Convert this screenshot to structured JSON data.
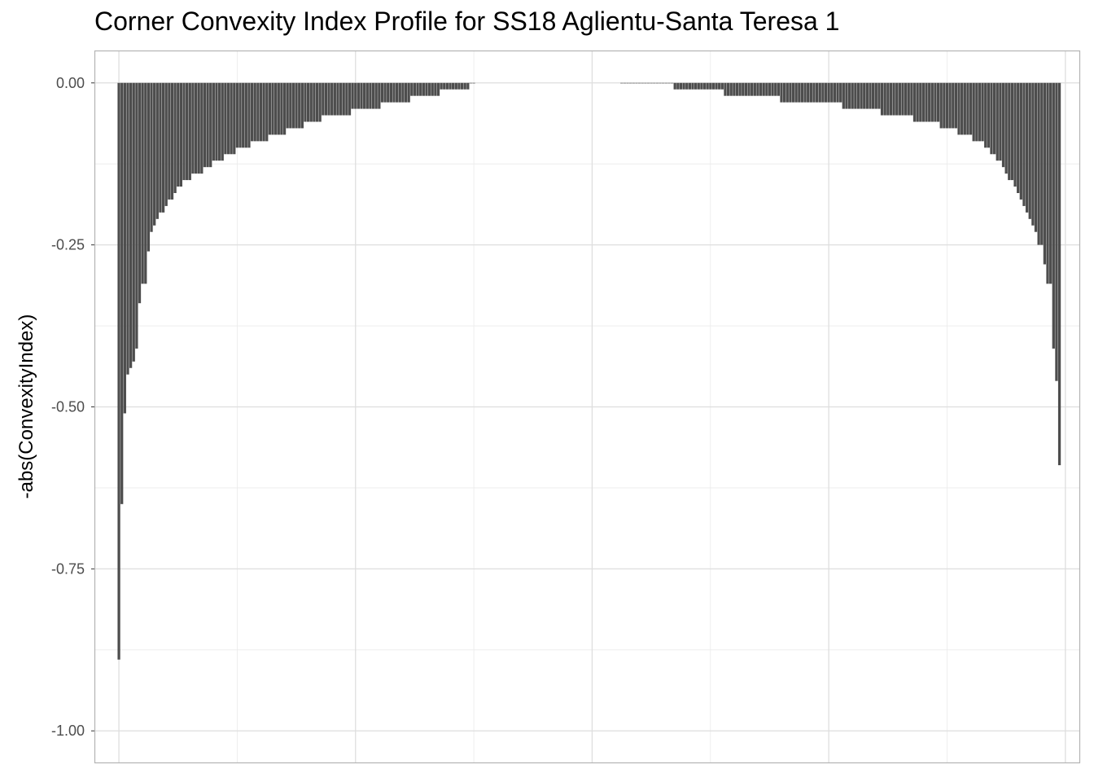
{
  "chart_data": {
    "type": "bar",
    "title": "Corner Convexity Index Profile for SS18 Aglientu-Santa Teresa 1",
    "xlabel": "",
    "ylabel": "-abs(ConvexityIndex)",
    "ylim": [
      -1.05,
      0.05
    ],
    "y_ticks": [
      "0.00",
      "-0.25",
      "-0.50",
      "-0.75",
      "-1.00"
    ],
    "y_tick_values": [
      0,
      -0.25,
      -0.5,
      -0.75,
      -1.0
    ],
    "grid": true,
    "legend": "none",
    "bar_color": "#4d4d4d",
    "x_range": [
      -8,
      325
    ],
    "x_major_breaks": [
      0,
      80,
      160,
      240,
      320
    ],
    "x_minor_breaks": [
      40,
      120,
      200,
      280
    ],
    "series": [
      {
        "values": [
          [
            0,
            -0.89
          ],
          [
            1,
            -0.65
          ],
          [
            2,
            -0.51
          ],
          [
            3,
            -0.45
          ],
          [
            4,
            -0.44
          ],
          [
            5,
            -0.43
          ],
          [
            6,
            -0.41
          ],
          [
            7,
            -0.34
          ],
          [
            8,
            -0.31
          ],
          [
            9,
            -0.31
          ],
          [
            10,
            -0.26
          ],
          [
            11,
            -0.23
          ],
          [
            12,
            -0.22
          ],
          [
            13,
            -0.21
          ],
          [
            14,
            -0.2
          ],
          [
            15,
            -0.2
          ],
          [
            16,
            -0.19
          ],
          [
            17,
            -0.18
          ],
          [
            18,
            -0.18
          ],
          [
            19,
            -0.17
          ],
          [
            20,
            -0.16
          ],
          [
            21,
            -0.16
          ],
          [
            22,
            -0.15
          ],
          [
            23,
            -0.15
          ],
          [
            24,
            -0.15
          ],
          [
            25,
            -0.14
          ],
          [
            26,
            -0.14
          ],
          [
            27,
            -0.14
          ],
          [
            28,
            -0.14
          ],
          [
            29,
            -0.13
          ],
          [
            30,
            -0.13
          ],
          [
            31,
            -0.13
          ],
          [
            32,
            -0.12
          ],
          [
            33,
            -0.12
          ],
          [
            34,
            -0.12
          ],
          [
            35,
            -0.12
          ],
          [
            36,
            -0.11
          ],
          [
            37,
            -0.11
          ],
          [
            38,
            -0.11
          ],
          [
            39,
            -0.11
          ],
          [
            40,
            -0.1
          ],
          [
            41,
            -0.1
          ],
          [
            42,
            -0.1
          ],
          [
            43,
            -0.1
          ],
          [
            44,
            -0.1
          ],
          [
            45,
            -0.09
          ],
          [
            46,
            -0.09
          ],
          [
            47,
            -0.09
          ],
          [
            48,
            -0.09
          ],
          [
            49,
            -0.09
          ],
          [
            50,
            -0.09
          ],
          [
            51,
            -0.08
          ],
          [
            52,
            -0.08
          ],
          [
            53,
            -0.08
          ],
          [
            54,
            -0.08
          ],
          [
            55,
            -0.08
          ],
          [
            56,
            -0.08
          ],
          [
            57,
            -0.07
          ],
          [
            58,
            -0.07
          ],
          [
            59,
            -0.07
          ],
          [
            60,
            -0.07
          ],
          [
            61,
            -0.07
          ],
          [
            62,
            -0.07
          ],
          [
            63,
            -0.06
          ],
          [
            64,
            -0.06
          ],
          [
            65,
            -0.06
          ],
          [
            66,
            -0.06
          ],
          [
            67,
            -0.06
          ],
          [
            68,
            -0.06
          ],
          [
            69,
            -0.05
          ],
          [
            70,
            -0.05
          ],
          [
            71,
            -0.05
          ],
          [
            72,
            -0.05
          ],
          [
            73,
            -0.05
          ],
          [
            74,
            -0.05
          ],
          [
            75,
            -0.05
          ],
          [
            76,
            -0.05
          ],
          [
            77,
            -0.05
          ],
          [
            78,
            -0.05
          ],
          [
            79,
            -0.04
          ],
          [
            80,
            -0.04
          ],
          [
            81,
            -0.04
          ],
          [
            82,
            -0.04
          ],
          [
            83,
            -0.04
          ],
          [
            84,
            -0.04
          ],
          [
            85,
            -0.04
          ],
          [
            86,
            -0.04
          ],
          [
            87,
            -0.04
          ],
          [
            88,
            -0.04
          ],
          [
            89,
            -0.03
          ],
          [
            90,
            -0.03
          ],
          [
            91,
            -0.03
          ],
          [
            92,
            -0.03
          ],
          [
            93,
            -0.03
          ],
          [
            94,
            -0.03
          ],
          [
            95,
            -0.03
          ],
          [
            96,
            -0.03
          ],
          [
            97,
            -0.03
          ],
          [
            98,
            -0.03
          ],
          [
            99,
            -0.02
          ],
          [
            100,
            -0.02
          ],
          [
            101,
            -0.02
          ],
          [
            102,
            -0.02
          ],
          [
            103,
            -0.02
          ],
          [
            104,
            -0.02
          ],
          [
            105,
            -0.02
          ],
          [
            106,
            -0.02
          ],
          [
            107,
            -0.02
          ],
          [
            108,
            -0.02
          ],
          [
            109,
            -0.01
          ],
          [
            110,
            -0.01
          ],
          [
            111,
            -0.01
          ],
          [
            112,
            -0.01
          ],
          [
            113,
            -0.01
          ],
          [
            114,
            -0.01
          ],
          [
            115,
            -0.01
          ],
          [
            116,
            -0.01
          ],
          [
            117,
            -0.01
          ],
          [
            118,
            -0.01
          ],
          [
            119,
            -0.0
          ],
          [
            120,
            -0.0
          ],
          [
            170,
            -0.0
          ],
          [
            171,
            -0.0
          ],
          [
            172,
            -0.0
          ],
          [
            173,
            -0.0
          ],
          [
            174,
            -0.0
          ],
          [
            175,
            -0.0
          ],
          [
            176,
            -0.0
          ],
          [
            177,
            -0.0
          ],
          [
            178,
            -0.0
          ],
          [
            179,
            -0.0
          ],
          [
            180,
            -0.0
          ],
          [
            181,
            -0.0
          ],
          [
            182,
            -0.0
          ],
          [
            183,
            -0.0
          ],
          [
            184,
            -0.0
          ],
          [
            185,
            -0.0
          ],
          [
            186,
            -0.0
          ],
          [
            187,
            -0.0
          ],
          [
            188,
            -0.01
          ],
          [
            189,
            -0.01
          ],
          [
            190,
            -0.01
          ],
          [
            191,
            -0.01
          ],
          [
            192,
            -0.01
          ],
          [
            193,
            -0.01
          ],
          [
            194,
            -0.01
          ],
          [
            195,
            -0.01
          ],
          [
            196,
            -0.01
          ],
          [
            197,
            -0.01
          ],
          [
            198,
            -0.01
          ],
          [
            199,
            -0.01
          ],
          [
            200,
            -0.01
          ],
          [
            201,
            -0.01
          ],
          [
            202,
            -0.01
          ],
          [
            203,
            -0.01
          ],
          [
            204,
            -0.01
          ],
          [
            205,
            -0.02
          ],
          [
            206,
            -0.02
          ],
          [
            207,
            -0.02
          ],
          [
            208,
            -0.02
          ],
          [
            209,
            -0.02
          ],
          [
            210,
            -0.02
          ],
          [
            211,
            -0.02
          ],
          [
            212,
            -0.02
          ],
          [
            213,
            -0.02
          ],
          [
            214,
            -0.02
          ],
          [
            215,
            -0.02
          ],
          [
            216,
            -0.02
          ],
          [
            217,
            -0.02
          ],
          [
            218,
            -0.02
          ],
          [
            219,
            -0.02
          ],
          [
            220,
            -0.02
          ],
          [
            221,
            -0.02
          ],
          [
            222,
            -0.02
          ],
          [
            223,
            -0.02
          ],
          [
            224,
            -0.03
          ],
          [
            225,
            -0.03
          ],
          [
            226,
            -0.03
          ],
          [
            227,
            -0.03
          ],
          [
            228,
            -0.03
          ],
          [
            229,
            -0.03
          ],
          [
            230,
            -0.03
          ],
          [
            231,
            -0.03
          ],
          [
            232,
            -0.03
          ],
          [
            233,
            -0.03
          ],
          [
            234,
            -0.03
          ],
          [
            235,
            -0.03
          ],
          [
            236,
            -0.03
          ],
          [
            237,
            -0.03
          ],
          [
            238,
            -0.03
          ],
          [
            239,
            -0.03
          ],
          [
            240,
            -0.03
          ],
          [
            241,
            -0.03
          ],
          [
            242,
            -0.03
          ],
          [
            243,
            -0.03
          ],
          [
            244,
            -0.03
          ],
          [
            245,
            -0.04
          ],
          [
            246,
            -0.04
          ],
          [
            247,
            -0.04
          ],
          [
            248,
            -0.04
          ],
          [
            249,
            -0.04
          ],
          [
            250,
            -0.04
          ],
          [
            251,
            -0.04
          ],
          [
            252,
            -0.04
          ],
          [
            253,
            -0.04
          ],
          [
            254,
            -0.04
          ],
          [
            255,
            -0.04
          ],
          [
            256,
            -0.04
          ],
          [
            257,
            -0.04
          ],
          [
            258,
            -0.05
          ],
          [
            259,
            -0.05
          ],
          [
            260,
            -0.05
          ],
          [
            261,
            -0.05
          ],
          [
            262,
            -0.05
          ],
          [
            263,
            -0.05
          ],
          [
            264,
            -0.05
          ],
          [
            265,
            -0.05
          ],
          [
            266,
            -0.05
          ],
          [
            267,
            -0.05
          ],
          [
            268,
            -0.05
          ],
          [
            269,
            -0.06
          ],
          [
            270,
            -0.06
          ],
          [
            271,
            -0.06
          ],
          [
            272,
            -0.06
          ],
          [
            273,
            -0.06
          ],
          [
            274,
            -0.06
          ],
          [
            275,
            -0.06
          ],
          [
            276,
            -0.06
          ],
          [
            277,
            -0.06
          ],
          [
            278,
            -0.07
          ],
          [
            279,
            -0.07
          ],
          [
            280,
            -0.07
          ],
          [
            281,
            -0.07
          ],
          [
            282,
            -0.07
          ],
          [
            283,
            -0.07
          ],
          [
            284,
            -0.08
          ],
          [
            285,
            -0.08
          ],
          [
            286,
            -0.08
          ],
          [
            287,
            -0.08
          ],
          [
            288,
            -0.08
          ],
          [
            289,
            -0.09
          ],
          [
            290,
            -0.09
          ],
          [
            291,
            -0.09
          ],
          [
            292,
            -0.09
          ],
          [
            293,
            -0.1
          ],
          [
            294,
            -0.1
          ],
          [
            295,
            -0.11
          ],
          [
            296,
            -0.11
          ],
          [
            297,
            -0.12
          ],
          [
            298,
            -0.12
          ],
          [
            299,
            -0.13
          ],
          [
            300,
            -0.14
          ],
          [
            301,
            -0.15
          ],
          [
            302,
            -0.15
          ],
          [
            303,
            -0.16
          ],
          [
            304,
            -0.17
          ],
          [
            305,
            -0.18
          ],
          [
            306,
            -0.19
          ],
          [
            307,
            -0.2
          ],
          [
            308,
            -0.21
          ],
          [
            309,
            -0.22
          ],
          [
            310,
            -0.23
          ],
          [
            311,
            -0.25
          ],
          [
            312,
            -0.25
          ],
          [
            313,
            -0.28
          ],
          [
            314,
            -0.31
          ],
          [
            315,
            -0.31
          ],
          [
            316,
            -0.41
          ],
          [
            317,
            -0.46
          ],
          [
            318,
            -0.59
          ]
        ]
      }
    ]
  }
}
